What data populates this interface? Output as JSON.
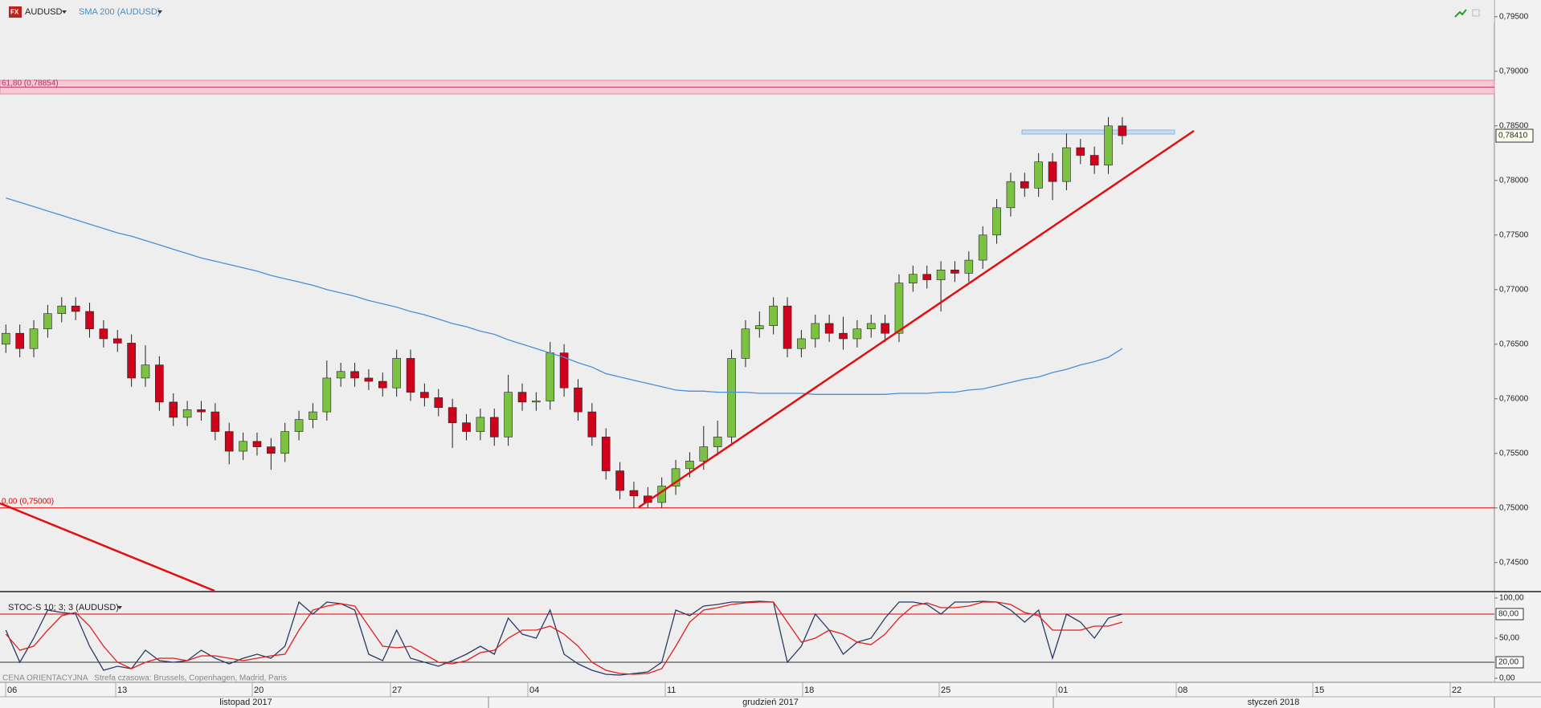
{
  "header": {
    "symbol": "AUDUSD"
  },
  "chart_data": [
    {
      "type": "candlestick",
      "open": [
        0.765,
        0.766,
        0.7646,
        0.7664,
        0.7678,
        0.7685,
        0.768,
        0.7664,
        0.7655,
        0.7651,
        0.7619,
        0.7631,
        0.7597,
        0.7583,
        0.759,
        0.7588,
        0.757,
        0.7552,
        0.7561,
        0.7556,
        0.755,
        0.757,
        0.7581,
        0.7588,
        0.7619,
        0.7625,
        0.7619,
        0.7616,
        0.761,
        0.7637,
        0.7606,
        0.7601,
        0.7592,
        0.7578,
        0.757,
        0.7583,
        0.7565,
        0.7606,
        0.7597,
        0.7598,
        0.7642,
        0.761,
        0.7588,
        0.7565,
        0.7534,
        0.7516,
        0.7511,
        0.7505,
        0.752,
        0.7536,
        0.7543,
        0.7556,
        0.7565,
        0.7637,
        0.7664,
        0.7667,
        0.7685,
        0.7646,
        0.7655,
        0.7669,
        0.766,
        0.7655,
        0.7664,
        0.7669,
        0.766,
        0.7706,
        0.7714,
        0.7709,
        0.7718,
        0.7715,
        0.7727,
        0.775,
        0.7775,
        0.7799,
        0.7793,
        0.7817,
        0.7799,
        0.783,
        0.7823,
        0.7814,
        0.785
      ],
      "high": [
        0.7668,
        0.7668,
        0.7672,
        0.7686,
        0.7693,
        0.7693,
        0.7688,
        0.7672,
        0.7663,
        0.7659,
        0.7649,
        0.7639,
        0.7605,
        0.7598,
        0.7598,
        0.7596,
        0.7578,
        0.7569,
        0.7569,
        0.7564,
        0.7578,
        0.7589,
        0.7596,
        0.7635,
        0.7633,
        0.7633,
        0.7627,
        0.7624,
        0.7645,
        0.7645,
        0.7614,
        0.7609,
        0.76,
        0.7586,
        0.7591,
        0.7591,
        0.7622,
        0.7614,
        0.7606,
        0.7652,
        0.765,
        0.7618,
        0.7596,
        0.7573,
        0.7542,
        0.7524,
        0.7519,
        0.7528,
        0.7544,
        0.7551,
        0.7575,
        0.758,
        0.7645,
        0.7672,
        0.768,
        0.7693,
        0.7693,
        0.7663,
        0.7677,
        0.7677,
        0.7675,
        0.7672,
        0.7677,
        0.7677,
        0.7714,
        0.7722,
        0.7722,
        0.7726,
        0.7726,
        0.7735,
        0.7758,
        0.7783,
        0.7807,
        0.7807,
        0.7825,
        0.7825,
        0.7843,
        0.7838,
        0.7831,
        0.7858,
        0.7858
      ],
      "low": [
        0.7642,
        0.7638,
        0.7638,
        0.7656,
        0.767,
        0.7672,
        0.7656,
        0.7647,
        0.7643,
        0.7611,
        0.7611,
        0.7589,
        0.7575,
        0.7575,
        0.758,
        0.7562,
        0.754,
        0.7544,
        0.7548,
        0.7535,
        0.7542,
        0.7562,
        0.7573,
        0.758,
        0.7611,
        0.7611,
        0.7608,
        0.7602,
        0.7602,
        0.7598,
        0.7593,
        0.7584,
        0.7555,
        0.7562,
        0.7562,
        0.7557,
        0.7557,
        0.7589,
        0.7589,
        0.759,
        0.7602,
        0.758,
        0.7557,
        0.7526,
        0.7508,
        0.75,
        0.75,
        0.75,
        0.7512,
        0.7528,
        0.7535,
        0.7548,
        0.7557,
        0.7629,
        0.7656,
        0.7659,
        0.7638,
        0.7638,
        0.7647,
        0.7652,
        0.7645,
        0.7647,
        0.7656,
        0.7652,
        0.7652,
        0.7698,
        0.7701,
        0.768,
        0.7707,
        0.7707,
        0.7719,
        0.7742,
        0.7767,
        0.7785,
        0.7785,
        0.7782,
        0.7791,
        0.7815,
        0.7806,
        0.7806,
        0.7833
      ],
      "close": [
        0.766,
        0.7646,
        0.7664,
        0.7678,
        0.7685,
        0.768,
        0.7664,
        0.7655,
        0.7651,
        0.7619,
        0.7631,
        0.7597,
        0.7583,
        0.759,
        0.7588,
        0.757,
        0.7552,
        0.7561,
        0.7556,
        0.755,
        0.757,
        0.7581,
        0.7588,
        0.7619,
        0.7625,
        0.7619,
        0.7616,
        0.761,
        0.7637,
        0.7606,
        0.7601,
        0.7592,
        0.7578,
        0.757,
        0.7583,
        0.7565,
        0.7606,
        0.7597,
        0.7598,
        0.7642,
        0.761,
        0.7588,
        0.7565,
        0.7534,
        0.7516,
        0.7511,
        0.7505,
        0.752,
        0.7536,
        0.7543,
        0.7556,
        0.7565,
        0.7637,
        0.7664,
        0.7667,
        0.7685,
        0.7646,
        0.7655,
        0.7669,
        0.766,
        0.7655,
        0.7664,
        0.7669,
        0.766,
        0.7706,
        0.7714,
        0.7709,
        0.7718,
        0.7715,
        0.7727,
        0.775,
        0.7775,
        0.7799,
        0.7793,
        0.7817,
        0.7799,
        0.783,
        0.7823,
        0.7814,
        0.785,
        0.7841
      ],
      "colors": {
        "up": "#7cc242",
        "down": "#d0021b",
        "wick": "#222222"
      },
      "series": [
        {
          "name": "SMA 200 (AUDUSD)",
          "color": "#4b8fd6",
          "values": [
            0.7784,
            0.778,
            0.7776,
            0.7772,
            0.7768,
            0.7764,
            0.776,
            0.7756,
            0.7752,
            0.7749,
            0.7745,
            0.7741,
            0.7737,
            0.7733,
            0.7729,
            0.7726,
            0.7723,
            0.772,
            0.7717,
            0.7713,
            0.771,
            0.7707,
            0.7704,
            0.77,
            0.7697,
            0.7694,
            0.769,
            0.7687,
            0.7684,
            0.768,
            0.7677,
            0.7673,
            0.7669,
            0.7666,
            0.7662,
            0.7659,
            0.7654,
            0.765,
            0.7646,
            0.7642,
            0.7638,
            0.7633,
            0.7629,
            0.7623,
            0.762,
            0.7617,
            0.7614,
            0.7611,
            0.7608,
            0.7607,
            0.7607,
            0.7606,
            0.7606,
            0.7606,
            0.7605,
            0.7605,
            0.7605,
            0.7605,
            0.7604,
            0.7604,
            0.7604,
            0.7604,
            0.7604,
            0.7604,
            0.7605,
            0.7605,
            0.7605,
            0.7606,
            0.7606,
            0.7608,
            0.7609,
            0.7612,
            0.7615,
            0.7618,
            0.762,
            0.7624,
            0.7627,
            0.7631,
            0.7634,
            0.7638,
            0.7646
          ]
        }
      ],
      "ylim": [
        0.74241,
        0.79653
      ],
      "yticks": [
        {
          "value": 0.795,
          "label": "0,79500"
        },
        {
          "value": 0.79,
          "label": "0,79000"
        },
        {
          "value": 0.785,
          "label": "0,78500"
        },
        {
          "value": 0.78,
          "label": "0,78000"
        },
        {
          "value": 0.775,
          "label": "0,77500"
        },
        {
          "value": 0.77,
          "label": "0,77000"
        },
        {
          "value": 0.765,
          "label": "0,76500"
        },
        {
          "value": 0.76,
          "label": "0,76000"
        },
        {
          "value": 0.755,
          "label": "0,75500"
        },
        {
          "value": 0.75,
          "label": "0,75000"
        },
        {
          "value": 0.745,
          "label": "0,74500"
        }
      ],
      "levels": [
        {
          "value": 0.78854,
          "label": "61,80 (0,78854)",
          "color": "#b0306a"
        },
        {
          "value": 0.75,
          "label": "0,00 (0,75000)",
          "color": "#e00000"
        }
      ],
      "last_price": {
        "value": 0.7841,
        "label": "0,78410"
      }
    },
    {
      "type": "line",
      "title": "STOC-S 10; 3; 3 (AUDUSD)",
      "series": [
        {
          "color": "#2b3a67",
          "values": [
            60,
            20,
            50,
            85,
            82,
            80,
            40,
            10,
            15,
            12,
            35,
            22,
            20,
            22,
            35,
            25,
            18,
            25,
            30,
            25,
            40,
            95,
            80,
            95,
            93,
            85,
            30,
            22,
            60,
            25,
            20,
            15,
            22,
            30,
            40,
            30,
            75,
            55,
            50,
            85,
            30,
            18,
            10,
            5,
            4,
            6,
            8,
            20,
            85,
            78,
            90,
            92,
            95,
            95,
            96,
            95,
            20,
            40,
            80,
            60,
            30,
            45,
            50,
            75,
            95,
            95,
            92,
            80,
            95,
            95,
            96,
            95,
            85,
            70,
            85,
            25,
            80,
            70,
            50,
            75,
            80
          ]
        },
        {
          "color": "#e02020",
          "values": [
            55,
            35,
            40,
            60,
            78,
            82,
            65,
            40,
            20,
            12,
            20,
            25,
            25,
            22,
            28,
            28,
            25,
            22,
            25,
            28,
            30,
            60,
            85,
            90,
            93,
            90,
            65,
            40,
            38,
            40,
            30,
            20,
            18,
            22,
            32,
            35,
            50,
            60,
            60,
            65,
            55,
            40,
            20,
            10,
            6,
            5,
            6,
            12,
            40,
            70,
            85,
            88,
            92,
            94,
            95,
            95,
            70,
            45,
            50,
            60,
            55,
            45,
            42,
            55,
            75,
            90,
            94,
            88,
            88,
            90,
            95,
            95,
            92,
            82,
            78,
            60,
            60,
            60,
            65,
            65,
            70
          ]
        }
      ],
      "ylim": [
        -5,
        107
      ],
      "yticks": [
        {
          "value": 100,
          "label": "100,00"
        },
        {
          "value": 50,
          "label": "50,00"
        },
        {
          "value": 0,
          "label": "0,00"
        }
      ],
      "levels": [
        {
          "value": 80,
          "label": "80,00",
          "color": "#e00000"
        },
        {
          "value": 20,
          "label": "20,00",
          "color": "#333333"
        }
      ]
    }
  ],
  "x_labels": [
    "06",
    "13",
    "20",
    "27",
    "04",
    "11",
    "18",
    "25",
    "01",
    "08",
    "15",
    "22"
  ],
  "months": [
    "listopad 2017",
    "grudzień 2017",
    "styczeń 2018"
  ],
  "footer": "CENA ORIENTACYJNA   Strefa czasowa: Brussels, Copenhagen, Madrid, Paris"
}
